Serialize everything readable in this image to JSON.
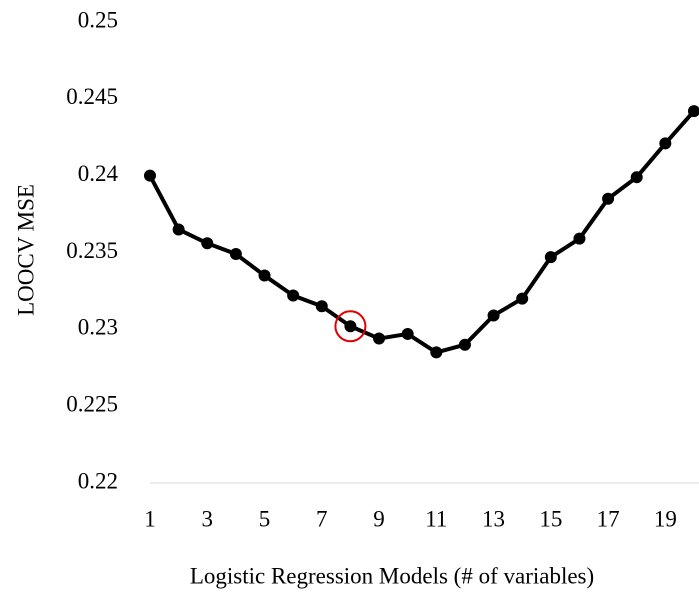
{
  "chart_data": {
    "type": "line",
    "x_label": "Logistic Regression Models (# of variables)",
    "y_label": "LOOCV MSE",
    "categories": [
      "1",
      null,
      "3",
      null,
      "5",
      null,
      "7",
      null,
      "9",
      null,
      "11",
      null,
      "13",
      null,
      "15",
      null,
      "17",
      null,
      "19",
      null
    ],
    "values": [
      0.24,
      0.2365,
      0.2356,
      0.2349,
      0.2335,
      0.2322,
      0.2315,
      0.2302,
      0.2294,
      0.2297,
      0.2285,
      0.229,
      0.2309,
      0.232,
      0.2347,
      0.2359,
      0.2385,
      0.2399,
      0.2421,
      0.2442
    ],
    "color": "#000000",
    "highlight_index": 7,
    "highlight_color": "#e00000",
    "ylim": [
      0.22,
      0.25
    ],
    "yticks": [
      0.22,
      0.225,
      0.23,
      0.235,
      0.24,
      0.245,
      0.25
    ],
    "grid": false
  }
}
